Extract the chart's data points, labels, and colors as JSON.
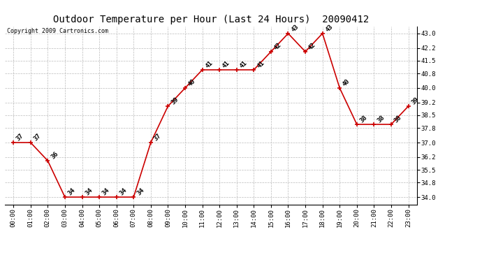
{
  "title": "Outdoor Temperature per Hour (Last 24 Hours)  20090412",
  "copyright": "Copyright 2009 Cartronics.com",
  "hours": [
    "00:00",
    "01:00",
    "02:00",
    "03:00",
    "04:00",
    "05:00",
    "06:00",
    "07:00",
    "08:00",
    "09:00",
    "10:00",
    "11:00",
    "12:00",
    "13:00",
    "14:00",
    "15:00",
    "16:00",
    "17:00",
    "18:00",
    "19:00",
    "20:00",
    "21:00",
    "22:00",
    "23:00"
  ],
  "temperatures": [
    37,
    37,
    36,
    34,
    34,
    34,
    34,
    34,
    37,
    39,
    40,
    41,
    41,
    41,
    41,
    42,
    43,
    42,
    43,
    40,
    38,
    38,
    38,
    39
  ],
  "line_color": "#cc0000",
  "marker_color": "#cc0000",
  "grid_color": "#bbbbbb",
  "bg_color": "#ffffff",
  "plot_bg_color": "#ffffff",
  "title_fontsize": 10,
  "copyright_fontsize": 6,
  "label_fontsize": 6.5,
  "tick_fontsize": 6.5,
  "yticks": [
    34.0,
    34.8,
    35.5,
    36.2,
    37.0,
    37.8,
    38.5,
    39.2,
    40.0,
    40.8,
    41.5,
    42.2,
    43.0
  ],
  "ylim": [
    33.6,
    43.4
  ],
  "marker_size": 5
}
